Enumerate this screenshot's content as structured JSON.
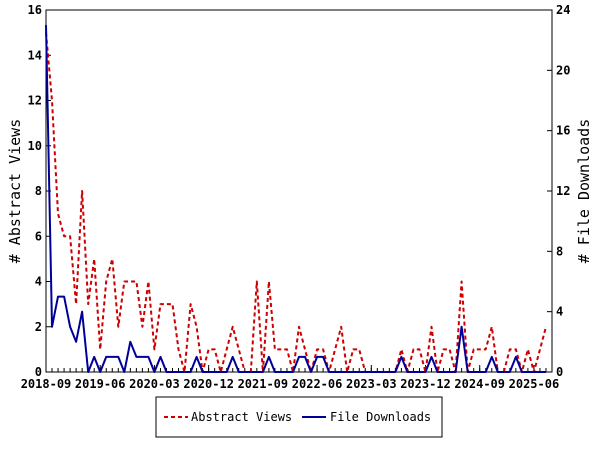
{
  "chart_data": {
    "type": "line",
    "title": "",
    "xlabel": "",
    "ylabel": "# Abstract Views",
    "y2label": "# File Downloads",
    "x_start": "2018-09",
    "x_end": "2025-09",
    "xtick_labels": [
      "2018-09",
      "2019-06",
      "2020-03",
      "2020-12",
      "2021-09",
      "2022-06",
      "2023-03",
      "2023-12",
      "2024-09",
      "2025-06"
    ],
    "ylim": [
      0,
      16
    ],
    "y_ticks": [
      0,
      2,
      4,
      6,
      8,
      10,
      12,
      14,
      16
    ],
    "y2lim": [
      0,
      24
    ],
    "y2_ticks": [
      0,
      4,
      8,
      12,
      16,
      20,
      24
    ],
    "legend_position": "bottom-center",
    "grid": false,
    "series": [
      {
        "name": "Abstract Views",
        "axis": "left",
        "color": "#cc0000",
        "style": "dashed",
        "values": [
          [
            "2018-09",
            15
          ],
          [
            "2018-10",
            12
          ],
          [
            "2018-11",
            7
          ],
          [
            "2018-12",
            6
          ],
          [
            "2019-01",
            6
          ],
          [
            "2019-02",
            3
          ],
          [
            "2019-03",
            8
          ],
          [
            "2019-04",
            3
          ],
          [
            "2019-05",
            5
          ],
          [
            "2019-06",
            1
          ],
          [
            "2019-07",
            4
          ],
          [
            "2019-08",
            5
          ],
          [
            "2019-09",
            2
          ],
          [
            "2019-10",
            4
          ],
          [
            "2019-11",
            4
          ],
          [
            "2019-12",
            4
          ],
          [
            "2020-01",
            2
          ],
          [
            "2020-02",
            4
          ],
          [
            "2020-03",
            1
          ],
          [
            "2020-04",
            3
          ],
          [
            "2020-05",
            3
          ],
          [
            "2020-06",
            3
          ],
          [
            "2020-07",
            1
          ],
          [
            "2020-08",
            0
          ],
          [
            "2020-09",
            3
          ],
          [
            "2020-10",
            2
          ],
          [
            "2020-11",
            0
          ],
          [
            "2020-12",
            1
          ],
          [
            "2021-01",
            1
          ],
          [
            "2021-02",
            0
          ],
          [
            "2021-03",
            1
          ],
          [
            "2021-04",
            2
          ],
          [
            "2021-05",
            1
          ],
          [
            "2021-06",
            0
          ],
          [
            "2021-07",
            0
          ],
          [
            "2021-08",
            4
          ],
          [
            "2021-09",
            0
          ],
          [
            "2021-10",
            4
          ],
          [
            "2021-11",
            1
          ],
          [
            "2021-12",
            1
          ],
          [
            "2022-01",
            1
          ],
          [
            "2022-02",
            0
          ],
          [
            "2022-03",
            2
          ],
          [
            "2022-04",
            1
          ],
          [
            "2022-05",
            0
          ],
          [
            "2022-06",
            1
          ],
          [
            "2022-07",
            1
          ],
          [
            "2022-08",
            0
          ],
          [
            "2022-09",
            1
          ],
          [
            "2022-10",
            2
          ],
          [
            "2022-11",
            0
          ],
          [
            "2022-12",
            1
          ],
          [
            "2023-01",
            1
          ],
          [
            "2023-02",
            0
          ],
          [
            "2023-03",
            0
          ],
          [
            "2023-04",
            0
          ],
          [
            "2023-05",
            0
          ],
          [
            "2023-06",
            0
          ],
          [
            "2023-07",
            0
          ],
          [
            "2023-08",
            1
          ],
          [
            "2023-09",
            0
          ],
          [
            "2023-10",
            1
          ],
          [
            "2023-11",
            1
          ],
          [
            "2023-12",
            0
          ],
          [
            "2024-01",
            2
          ],
          [
            "2024-02",
            0
          ],
          [
            "2024-03",
            1
          ],
          [
            "2024-04",
            1
          ],
          [
            "2024-05",
            0
          ],
          [
            "2024-06",
            4
          ],
          [
            "2024-07",
            0
          ],
          [
            "2024-08",
            1
          ],
          [
            "2024-09",
            1
          ],
          [
            "2024-10",
            1
          ],
          [
            "2024-11",
            2
          ],
          [
            "2024-12",
            0
          ],
          [
            "2025-01",
            0
          ],
          [
            "2025-02",
            1
          ],
          [
            "2025-03",
            1
          ],
          [
            "2025-04",
            0
          ],
          [
            "2025-05",
            1
          ],
          [
            "2025-06",
            0
          ],
          [
            "2025-07",
            1
          ],
          [
            "2025-08",
            2
          ]
        ]
      },
      {
        "name": "File Downloads",
        "axis": "right",
        "color": "#000099",
        "style": "solid",
        "values": [
          [
            "2018-09",
            23
          ],
          [
            "2018-10",
            3
          ],
          [
            "2018-11",
            5
          ],
          [
            "2018-12",
            5
          ],
          [
            "2019-01",
            3
          ],
          [
            "2019-02",
            2
          ],
          [
            "2019-03",
            4
          ],
          [
            "2019-04",
            0
          ],
          [
            "2019-05",
            1
          ],
          [
            "2019-06",
            0
          ],
          [
            "2019-07",
            1
          ],
          [
            "2019-08",
            1
          ],
          [
            "2019-09",
            1
          ],
          [
            "2019-10",
            0
          ],
          [
            "2019-11",
            2
          ],
          [
            "2019-12",
            1
          ],
          [
            "2020-01",
            1
          ],
          [
            "2020-02",
            1
          ],
          [
            "2020-03",
            0
          ],
          [
            "2020-04",
            1
          ],
          [
            "2020-05",
            0
          ],
          [
            "2020-06",
            0
          ],
          [
            "2020-07",
            0
          ],
          [
            "2020-08",
            0
          ],
          [
            "2020-09",
            0
          ],
          [
            "2020-10",
            1
          ],
          [
            "2020-11",
            0
          ],
          [
            "2020-12",
            0
          ],
          [
            "2021-01",
            0
          ],
          [
            "2021-02",
            0
          ],
          [
            "2021-03",
            0
          ],
          [
            "2021-04",
            1
          ],
          [
            "2021-05",
            0
          ],
          [
            "2021-06",
            0
          ],
          [
            "2021-07",
            0
          ],
          [
            "2021-08",
            0
          ],
          [
            "2021-09",
            0
          ],
          [
            "2021-10",
            1
          ],
          [
            "2021-11",
            0
          ],
          [
            "2021-12",
            0
          ],
          [
            "2022-01",
            0
          ],
          [
            "2022-02",
            0
          ],
          [
            "2022-03",
            1
          ],
          [
            "2022-04",
            1
          ],
          [
            "2022-05",
            0
          ],
          [
            "2022-06",
            1
          ],
          [
            "2022-07",
            1
          ],
          [
            "2022-08",
            0
          ],
          [
            "2022-09",
            0
          ],
          [
            "2022-10",
            0
          ],
          [
            "2022-11",
            0
          ],
          [
            "2022-12",
            0
          ],
          [
            "2023-01",
            0
          ],
          [
            "2023-02",
            0
          ],
          [
            "2023-03",
            0
          ],
          [
            "2023-04",
            0
          ],
          [
            "2023-05",
            0
          ],
          [
            "2023-06",
            0
          ],
          [
            "2023-07",
            0
          ],
          [
            "2023-08",
            1
          ],
          [
            "2023-09",
            0
          ],
          [
            "2023-10",
            0
          ],
          [
            "2023-11",
            0
          ],
          [
            "2023-12",
            0
          ],
          [
            "2024-01",
            1
          ],
          [
            "2024-02",
            0
          ],
          [
            "2024-03",
            0
          ],
          [
            "2024-04",
            0
          ],
          [
            "2024-05",
            0
          ],
          [
            "2024-06",
            3
          ],
          [
            "2024-07",
            0
          ],
          [
            "2024-08",
            0
          ],
          [
            "2024-09",
            0
          ],
          [
            "2024-10",
            0
          ],
          [
            "2024-11",
            1
          ],
          [
            "2024-12",
            0
          ],
          [
            "2025-01",
            0
          ],
          [
            "2025-02",
            0
          ],
          [
            "2025-03",
            1
          ],
          [
            "2025-04",
            0
          ],
          [
            "2025-05",
            0
          ],
          [
            "2025-06",
            0
          ],
          [
            "2025-07",
            0
          ],
          [
            "2025-08",
            0
          ]
        ]
      }
    ]
  }
}
